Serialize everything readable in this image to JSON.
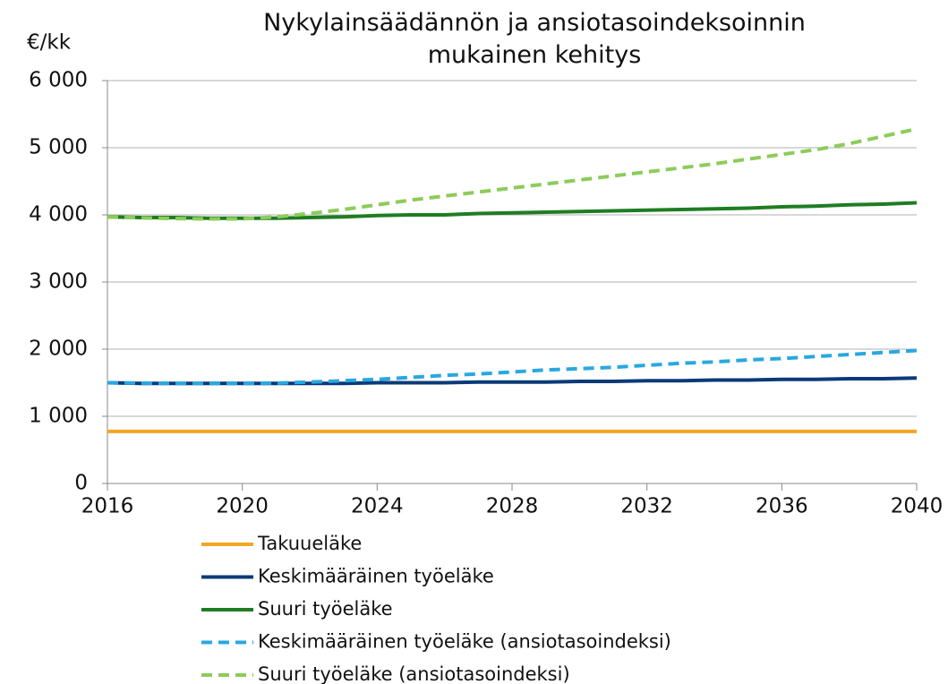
{
  "chart_data": {
    "type": "line",
    "title": "Nykylainsäädännön ja ansiotasoindeksoinnin mukainen kehitys",
    "y_label": "€/kk",
    "x": [
      2016,
      2017,
      2018,
      2019,
      2020,
      2021,
      2022,
      2023,
      2024,
      2025,
      2026,
      2027,
      2028,
      2029,
      2030,
      2031,
      2032,
      2033,
      2034,
      2035,
      2036,
      2037,
      2038,
      2039,
      2040
    ],
    "xlim": [
      2016,
      2040
    ],
    "xticks": [
      2016,
      2020,
      2024,
      2028,
      2032,
      2036,
      2040
    ],
    "ylim": [
      0,
      6000
    ],
    "yticks": [
      0,
      {
        "value": 1000,
        "label": "1 000"
      },
      {
        "value": 2000,
        "label": "2 000"
      },
      {
        "value": 3000,
        "label": "3 000"
      },
      {
        "value": 4000,
        "label": "4 000"
      },
      {
        "value": 5000,
        "label": "5 000"
      },
      {
        "value": 6000,
        "label": "6 000"
      }
    ],
    "grid": true,
    "legend": "bottom",
    "series": [
      {
        "name": "Takuueläke",
        "color": "#f5a623",
        "dashed": false,
        "values": [
          775,
          775,
          775,
          775,
          775,
          775,
          775,
          775,
          775,
          775,
          775,
          775,
          775,
          775,
          775,
          775,
          775,
          775,
          775,
          775,
          775,
          775,
          775,
          775,
          775
        ]
      },
      {
        "name": "Keskimääräinen työeläke",
        "color": "#0b3a78",
        "dashed": false,
        "values": [
          1500,
          1490,
          1490,
          1490,
          1490,
          1490,
          1490,
          1490,
          1500,
          1500,
          1500,
          1510,
          1510,
          1510,
          1520,
          1520,
          1530,
          1530,
          1540,
          1540,
          1550,
          1550,
          1560,
          1560,
          1570
        ]
      },
      {
        "name": "Suuri työeläke",
        "color": "#1e7d22",
        "dashed": false,
        "values": [
          3970,
          3960,
          3960,
          3950,
          3950,
          3950,
          3960,
          3970,
          3990,
          4000,
          4000,
          4020,
          4030,
          4040,
          4050,
          4060,
          4070,
          4080,
          4090,
          4100,
          4120,
          4130,
          4150,
          4160,
          4180
        ]
      },
      {
        "name": "Keskimääräinen työeläke (ansiotasoindeksi)",
        "color": "#29a8e0",
        "dashed": true,
        "values": [
          1500,
          1495,
          1490,
          1490,
          1490,
          1495,
          1510,
          1530,
          1550,
          1580,
          1610,
          1630,
          1660,
          1690,
          1710,
          1730,
          1760,
          1790,
          1810,
          1840,
          1860,
          1890,
          1920,
          1950,
          1980
        ]
      },
      {
        "name": "Suuri työeläke (ansiotasoindeksi)",
        "color": "#8ccc5a",
        "dashed": true,
        "values": [
          3970,
          3955,
          3945,
          3940,
          3940,
          3970,
          4020,
          4080,
          4150,
          4220,
          4280,
          4340,
          4400,
          4460,
          4520,
          4580,
          4640,
          4700,
          4760,
          4830,
          4900,
          4970,
          5060,
          5170,
          5280
        ]
      }
    ]
  }
}
